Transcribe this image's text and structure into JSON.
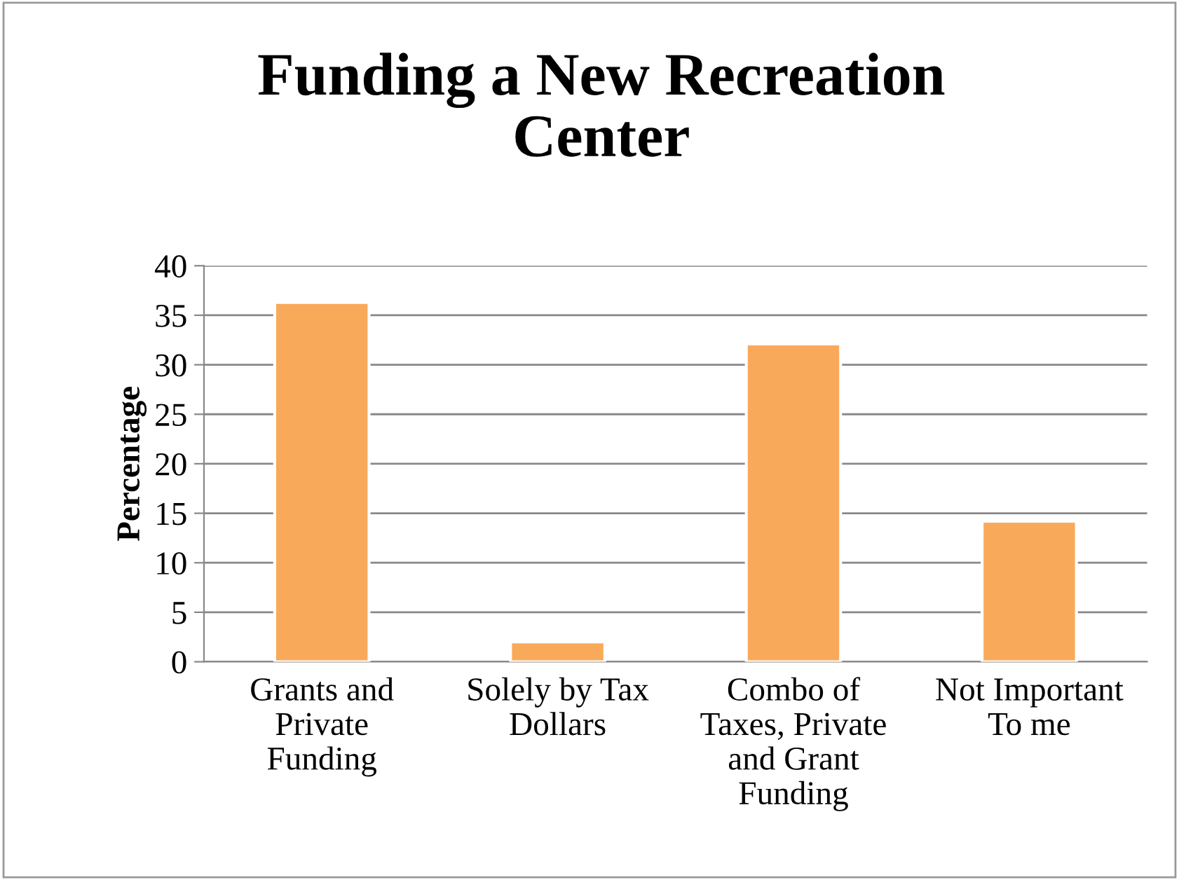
{
  "chart_data": {
    "type": "bar",
    "title": "Funding a New Recreation\nCenter",
    "ylabel": "Percentage",
    "categories": [
      "Grants and\nPrivate\nFunding",
      "Solely by Tax\nDollars",
      "Combo of\nTaxes, Private\nand Grant\nFunding",
      "Not Important\nTo me"
    ],
    "values": [
      36.3,
      2.0,
      32.1,
      14.2
    ],
    "color": "#f9a95a",
    "ylim": [
      0,
      40
    ],
    "yticks": [
      0,
      5,
      10,
      15,
      20,
      25,
      30,
      35,
      40
    ],
    "grid": "y",
    "legend": false
  }
}
